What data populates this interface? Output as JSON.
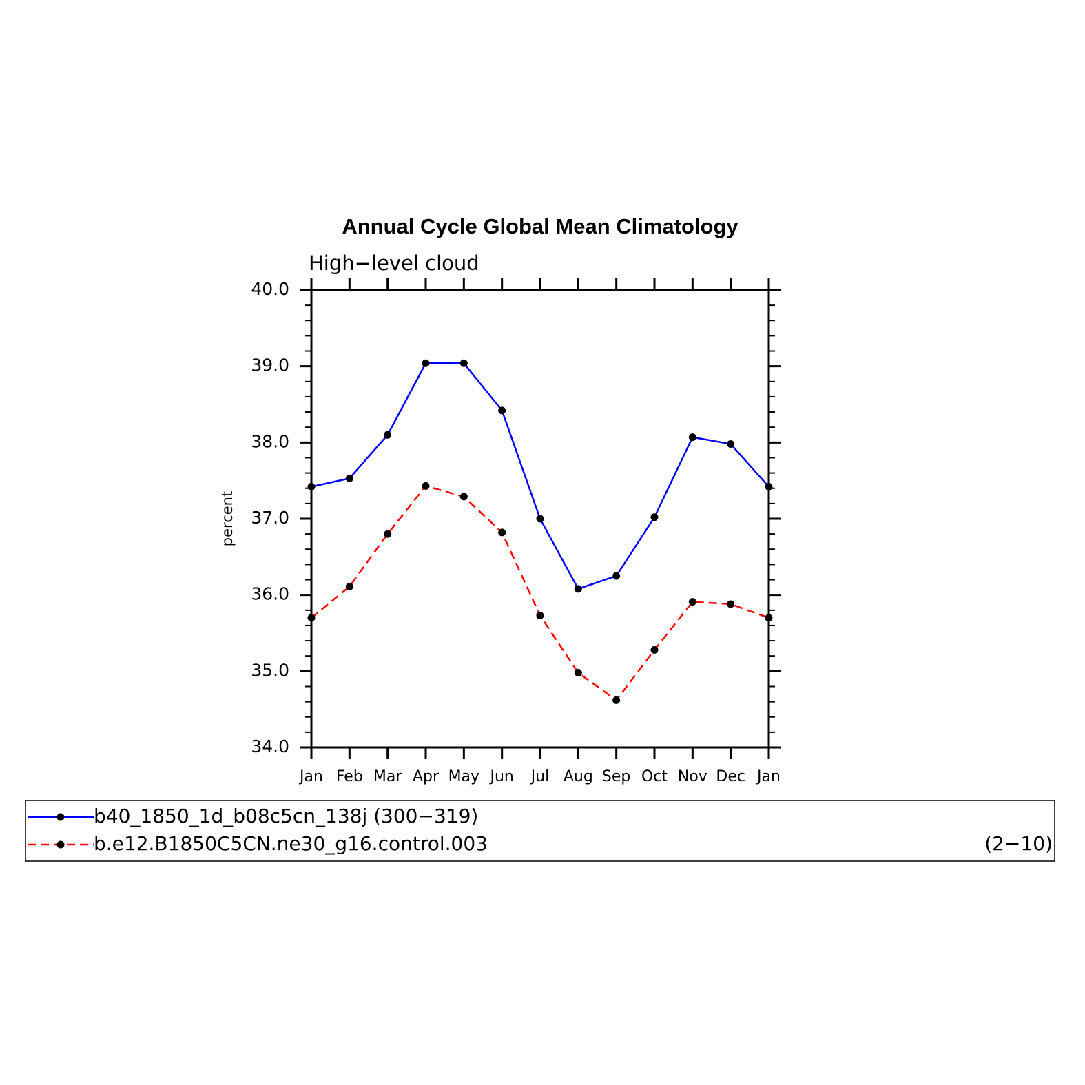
{
  "chart_data": {
    "type": "line",
    "title": "Annual Cycle Global Mean Climatology",
    "subtitle": "High−level cloud",
    "y_label": "percent",
    "categories": [
      "Jan",
      "Feb",
      "Mar",
      "Apr",
      "May",
      "Jun",
      "Jul",
      "Aug",
      "Sep",
      "Oct",
      "Nov",
      "Dec",
      "Jan"
    ],
    "series": [
      {
        "name": "b40_1850_1d_b08c5cn_138j (300−319)",
        "color": "#0000ff",
        "dash": "solid",
        "values": [
          37.42,
          37.53,
          38.1,
          39.04,
          39.04,
          38.42,
          37.0,
          36.08,
          36.25,
          37.02,
          38.07,
          37.98,
          37.42
        ]
      },
      {
        "name": "b.e12.B1850C5CN.ne30_g16.control.003",
        "period": "(2−10)",
        "color": "#ff0000",
        "dash": "dashed",
        "values": [
          35.7,
          36.11,
          36.8,
          37.43,
          37.29,
          36.82,
          35.73,
          34.98,
          34.62,
          35.28,
          35.91,
          35.88,
          35.7
        ]
      }
    ],
    "ylim": [
      34,
      40
    ],
    "yticks": [
      {
        "value": 34,
        "label": "34.0"
      },
      {
        "value": 35,
        "label": "35.0"
      },
      {
        "value": 36,
        "label": "36.0"
      },
      {
        "value": 37,
        "label": "37.0"
      },
      {
        "value": 38,
        "label": "38.0"
      },
      {
        "value": 39,
        "label": "39.0"
      },
      {
        "value": 40,
        "label": "40.0"
      }
    ],
    "yminorticks": [
      34.2,
      34.4,
      34.6,
      34.8,
      35.2,
      35.4,
      35.6,
      35.8,
      36.2,
      36.4,
      36.6,
      36.8,
      37.2,
      37.4,
      37.6,
      37.8,
      38.2,
      38.4,
      38.6,
      38.8,
      39.2,
      39.4,
      39.6,
      39.8
    ],
    "marker_color": "#000000"
  }
}
